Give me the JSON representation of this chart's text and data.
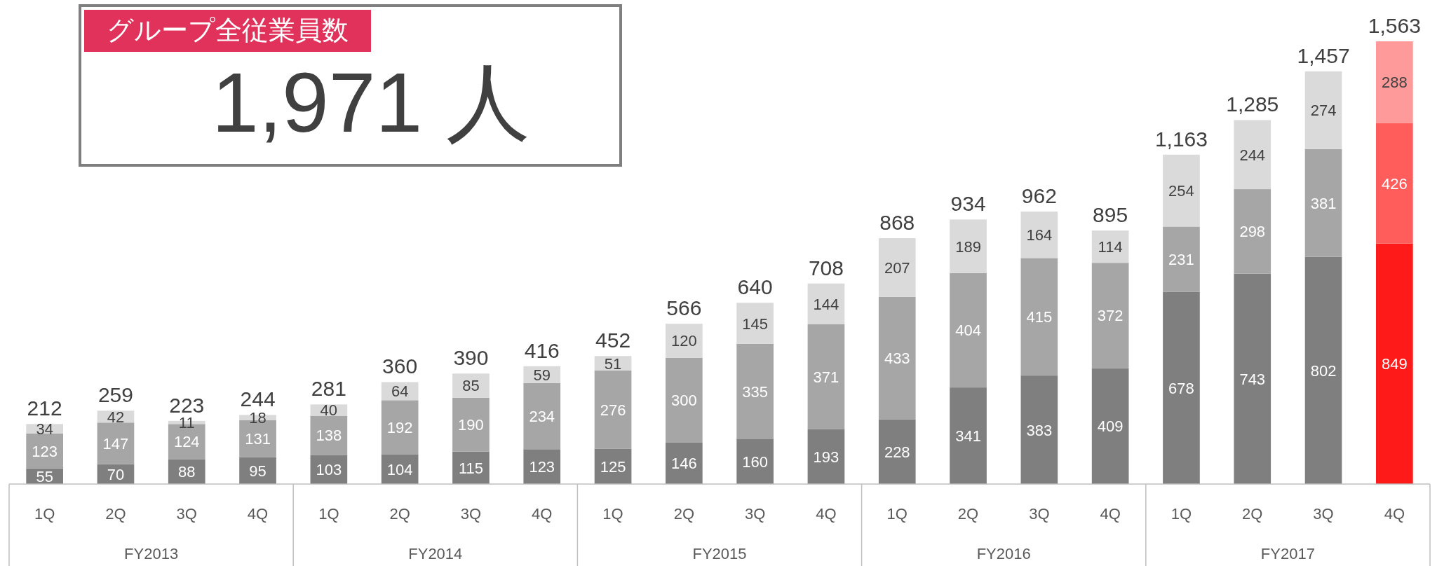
{
  "chart_data": {
    "type": "bar",
    "stacked": true,
    "title": "グループ全従業員数",
    "annotations": [
      "1,971 人",
      "FY2013",
      "FY2014",
      "FY2015",
      "FY2016",
      "FY2017"
    ],
    "categories": [
      "1Q",
      "2Q",
      "3Q",
      "4Q",
      "1Q",
      "2Q",
      "3Q",
      "4Q",
      "1Q",
      "2Q",
      "3Q",
      "4Q",
      "1Q",
      "2Q",
      "3Q",
      "4Q",
      "1Q",
      "2Q",
      "3Q",
      "4Q"
    ],
    "series": [
      {
        "colors": [
          "#7f7f7f",
          "#7f7f7f",
          "#7f7f7f",
          "#7f7f7f",
          "#7f7f7f",
          "#7f7f7f",
          "#7f7f7f",
          "#7f7f7f",
          "#7f7f7f",
          "#7f7f7f",
          "#7f7f7f",
          "#7f7f7f",
          "#7f7f7f",
          "#7f7f7f",
          "#7f7f7f",
          "#7f7f7f",
          "#7f7f7f",
          "#7f7f7f",
          "#7f7f7f",
          "#ff1a1a"
        ],
        "values": [
          55,
          70,
          88,
          95,
          103,
          104,
          115,
          123,
          125,
          146,
          160,
          193,
          228,
          341,
          383,
          409,
          678,
          743,
          802,
          849
        ]
      },
      {
        "colors": [
          "#a6a6a6",
          "#a6a6a6",
          "#a6a6a6",
          "#a6a6a6",
          "#a6a6a6",
          "#a6a6a6",
          "#a6a6a6",
          "#a6a6a6",
          "#a6a6a6",
          "#a6a6a6",
          "#a6a6a6",
          "#a6a6a6",
          "#a6a6a6",
          "#a6a6a6",
          "#a6a6a6",
          "#a6a6a6",
          "#a6a6a6",
          "#a6a6a6",
          "#a6a6a6",
          "#ff5c5c"
        ],
        "values": [
          123,
          147,
          124,
          131,
          138,
          192,
          190,
          234,
          276,
          300,
          335,
          371,
          433,
          404,
          415,
          372,
          231,
          298,
          381,
          426
        ]
      },
      {
        "colors": [
          "#dadada",
          "#dadada",
          "#dadada",
          "#dadada",
          "#dadada",
          "#dadada",
          "#dadada",
          "#dadada",
          "#dadada",
          "#dadada",
          "#dadada",
          "#dadada",
          "#dadada",
          "#dadada",
          "#dadada",
          "#dadada",
          "#dadada",
          "#dadada",
          "#dadada",
          "#ff9a9a"
        ],
        "values": [
          34,
          42,
          11,
          18,
          40,
          64,
          85,
          59,
          51,
          120,
          145,
          144,
          207,
          189,
          164,
          114,
          254,
          244,
          274,
          288
        ]
      }
    ],
    "data_labels": true,
    "totals": [
      "212",
      "259",
      "223",
      "244",
      "281",
      "360",
      "390",
      "416",
      "452",
      "566",
      "640",
      "708",
      "868",
      "934",
      "962",
      "895",
      "1,163",
      "1,285",
      "1,457",
      "1,563"
    ]
  }
}
